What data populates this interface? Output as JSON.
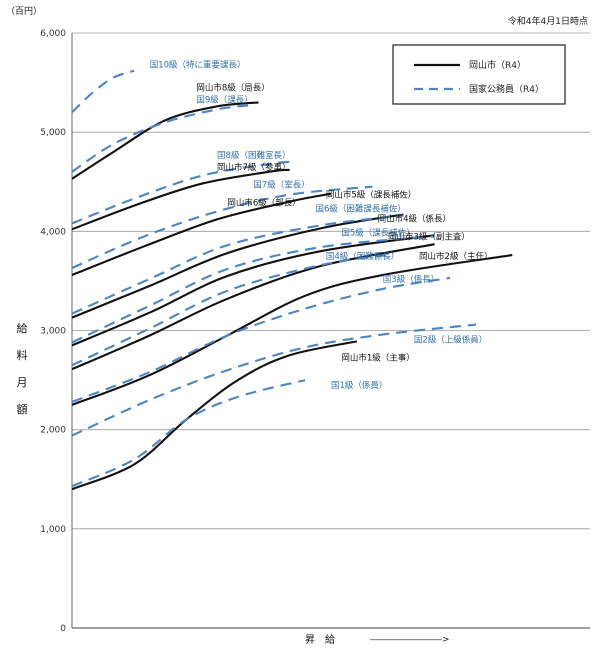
{
  "chart_data": {
    "type": "line",
    "unit_label": "（百円）",
    "date_note": "令和4年4月1日時点",
    "ylabel": "給料月額",
    "xlabel": "昇　給",
    "xlabel_arrow": "――――――――>",
    "ylim": [
      0,
      6000
    ],
    "yticks": [
      {
        "value": 0,
        "label": "0"
      },
      {
        "value": 1000,
        "label": "1,000"
      },
      {
        "value": 2000,
        "label": "2,000"
      },
      {
        "value": 3000,
        "label": "3,000"
      },
      {
        "value": 4000,
        "label": "4,000"
      },
      {
        "value": 5000,
        "label": "5,000"
      },
      {
        "value": 6000,
        "label": "6,000"
      }
    ],
    "legend": {
      "city": "岡山市（R4）",
      "national": "国家公務員（R4）"
    },
    "colors": {
      "city": "#111111",
      "national": "#4a86c5",
      "grid": "#9a9a9a",
      "axis": "#666666"
    },
    "series": [
      {
        "name": "岡山市8級（局長）",
        "group": "city",
        "x": [
          0,
          8,
          18,
          28,
          36
        ],
        "y": [
          4530,
          4800,
          5120,
          5260,
          5300
        ]
      },
      {
        "name": "国10級（特に重要課長）",
        "group": "national",
        "x": [
          0,
          4,
          8,
          12
        ],
        "y": [
          5200,
          5400,
          5550,
          5620
        ]
      },
      {
        "name": "国9級（課長）",
        "group": "national",
        "x": [
          0,
          8,
          18,
          28,
          34
        ],
        "y": [
          4600,
          4880,
          5100,
          5230,
          5270
        ]
      },
      {
        "name": "岡山市7級（参事）",
        "group": "city",
        "x": [
          0,
          12,
          25,
          38,
          42
        ],
        "y": [
          4020,
          4260,
          4480,
          4600,
          4620
        ]
      },
      {
        "name": "国8級（困難室長）",
        "group": "national",
        "x": [
          0,
          12,
          25,
          38,
          42
        ],
        "y": [
          4080,
          4330,
          4560,
          4680,
          4700
        ]
      },
      {
        "name": "岡山市6級（部長）",
        "group": "city",
        "x": [
          0,
          14,
          28,
          42,
          50
        ],
        "y": [
          3560,
          3850,
          4120,
          4300,
          4380
        ]
      },
      {
        "name": "国7級（室長）",
        "group": "national",
        "x": [
          0,
          14,
          28,
          42,
          58
        ],
        "y": [
          3630,
          3950,
          4200,
          4370,
          4450
        ]
      },
      {
        "name": "岡山市5級（課長補佐）",
        "group": "city",
        "x": [
          0,
          15,
          30,
          48,
          64
        ],
        "y": [
          3130,
          3450,
          3780,
          4030,
          4170
        ]
      },
      {
        "name": "国6級（困難課長補佐）",
        "group": "national",
        "x": [
          0,
          15,
          30,
          48,
          64
        ],
        "y": [
          3170,
          3520,
          3860,
          4060,
          4160
        ]
      },
      {
        "name": "岡山市4級（係長）",
        "group": "city",
        "x": [
          0,
          15,
          30,
          48,
          70
        ],
        "y": [
          2850,
          3180,
          3550,
          3800,
          3960
        ]
      },
      {
        "name": "国5級（課長補佐）",
        "group": "national",
        "x": [
          0,
          15,
          30,
          48,
          70
        ],
        "y": [
          2880,
          3250,
          3620,
          3840,
          3950
        ]
      },
      {
        "name": "岡山市3級（副主査）",
        "group": "city",
        "x": [
          0,
          15,
          30,
          48,
          70
        ],
        "y": [
          2610,
          2950,
          3320,
          3650,
          3870
        ]
      },
      {
        "name": "国4級（困難係長）",
        "group": "national",
        "x": [
          0,
          15,
          30,
          48,
          62
        ],
        "y": [
          2650,
          3020,
          3400,
          3660,
          3770
        ]
      },
      {
        "name": "岡山市2級（主任）",
        "group": "city",
        "x": [
          0,
          15,
          30,
          45,
          60,
          85
        ],
        "y": [
          2250,
          2550,
          2950,
          3350,
          3560,
          3760
        ]
      },
      {
        "name": "国3級（係長）",
        "group": "national",
        "x": [
          0,
          15,
          30,
          45,
          60,
          73
        ],
        "y": [
          2280,
          2580,
          2950,
          3220,
          3420,
          3530
        ]
      },
      {
        "name": "国2級（上級係員）",
        "group": "national",
        "x": [
          0,
          15,
          30,
          45,
          60,
          78
        ],
        "y": [
          1940,
          2300,
          2600,
          2830,
          2960,
          3060
        ]
      },
      {
        "name": "岡山市1級（主事）",
        "group": "city",
        "x": [
          0,
          12,
          22,
          32,
          42,
          55
        ],
        "y": [
          1400,
          1650,
          2100,
          2500,
          2750,
          2890
        ]
      },
      {
        "name": "国1級（係員）",
        "group": "national",
        "x": [
          0,
          12,
          22,
          32,
          45
        ],
        "y": [
          1430,
          1700,
          2100,
          2330,
          2500
        ]
      }
    ],
    "annotations": [
      {
        "text": "国10級（特に重要課長）",
        "group": "national",
        "x": 15,
        "y": 5650
      },
      {
        "text": "岡山市8級（局長）",
        "group": "city",
        "x": 24,
        "y": 5420
      },
      {
        "text": "国9級（課長）",
        "group": "national",
        "x": 24,
        "y": 5300
      },
      {
        "text": "国8級（困難室長）",
        "group": "national",
        "x": 28,
        "y": 4740
      },
      {
        "text": "岡山市7級（参事）",
        "group": "city",
        "x": 28,
        "y": 4620
      },
      {
        "text": "国7級（室長）",
        "group": "national",
        "x": 35,
        "y": 4440
      },
      {
        "text": "岡山市6級（部長）",
        "group": "city",
        "x": 30,
        "y": 4260
      },
      {
        "text": "岡山市5級（課長補佐）",
        "group": "city",
        "x": 49,
        "y": 4340
      },
      {
        "text": "国6級（困難課長補佐）",
        "group": "national",
        "x": 47,
        "y": 4200
      },
      {
        "text": "岡山市4級（係長）",
        "group": "city",
        "x": 59,
        "y": 4100
      },
      {
        "text": "国5級（課長補佐）",
        "group": "national",
        "x": 52,
        "y": 3960
      },
      {
        "text": "岡山市3級（副主査）",
        "group": "city",
        "x": 61,
        "y": 3920
      },
      {
        "text": "国4級（困難係長）",
        "group": "national",
        "x": 49,
        "y": 3720
      },
      {
        "text": "岡山市2級（主任）",
        "group": "city",
        "x": 67,
        "y": 3720
      },
      {
        "text": "国3級（係長）",
        "group": "national",
        "x": 60,
        "y": 3490
      },
      {
        "text": "国2級（上級係員）",
        "group": "national",
        "x": 66,
        "y": 2880
      },
      {
        "text": "岡山市1級（主事）",
        "group": "city",
        "x": 52,
        "y": 2700
      },
      {
        "text": "国1級（係員）",
        "group": "national",
        "x": 50,
        "y": 2420
      }
    ]
  }
}
